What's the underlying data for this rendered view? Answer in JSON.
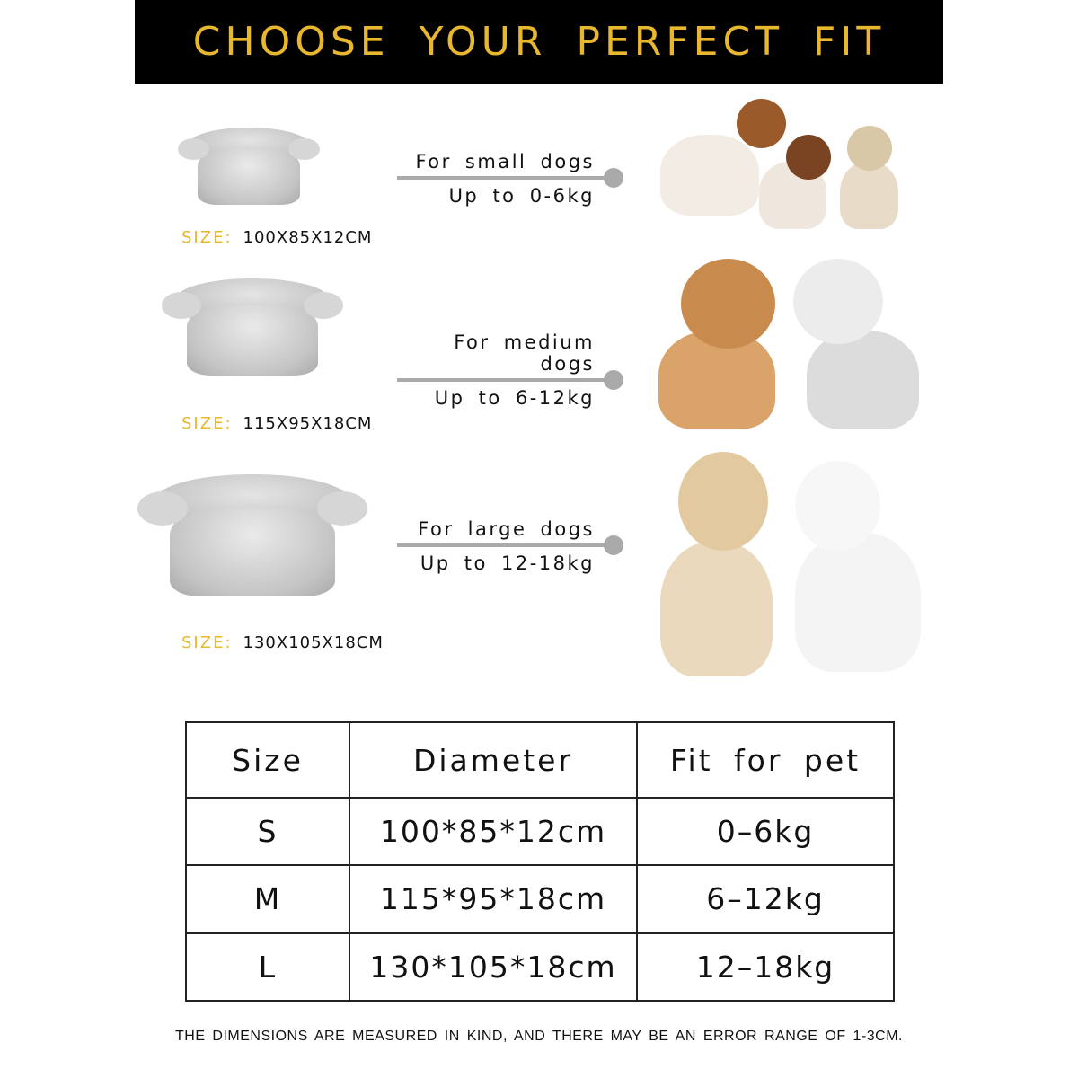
{
  "header": {
    "title": "CHOOSE YOUR PERFECT FIT"
  },
  "rows": [
    {
      "fit": "For small dogs",
      "weight": "Up to 0-6kg",
      "size_label": "SIZE:",
      "size_value": "100X85X12CM"
    },
    {
      "fit": "For medium dogs",
      "weight": "Up to 6-12kg",
      "size_label": "SIZE:",
      "size_value": "115X95X18CM"
    },
    {
      "fit": "For large dogs",
      "weight": "Up to 12-18kg",
      "size_label": "SIZE:",
      "size_value": "130X105X18CM"
    }
  ],
  "table": {
    "headers": [
      "Size",
      "Diameter",
      "Fit for pet"
    ],
    "rows": [
      [
        "S",
        "100*85*12cm",
        "0–6kg"
      ],
      [
        "M",
        "115*95*18cm",
        "6–12kg"
      ],
      [
        "L",
        "130*105*18cm",
        "12–18kg"
      ]
    ]
  },
  "note": "THE DIMENSIONS ARE MEASURED IN KIND, AND THERE MAY BE AN ERROR RANGE OF 1-3CM.",
  "colors": {
    "accent": "#e9b72d",
    "header_bg": "#000000",
    "line": "#aaaaaa"
  }
}
